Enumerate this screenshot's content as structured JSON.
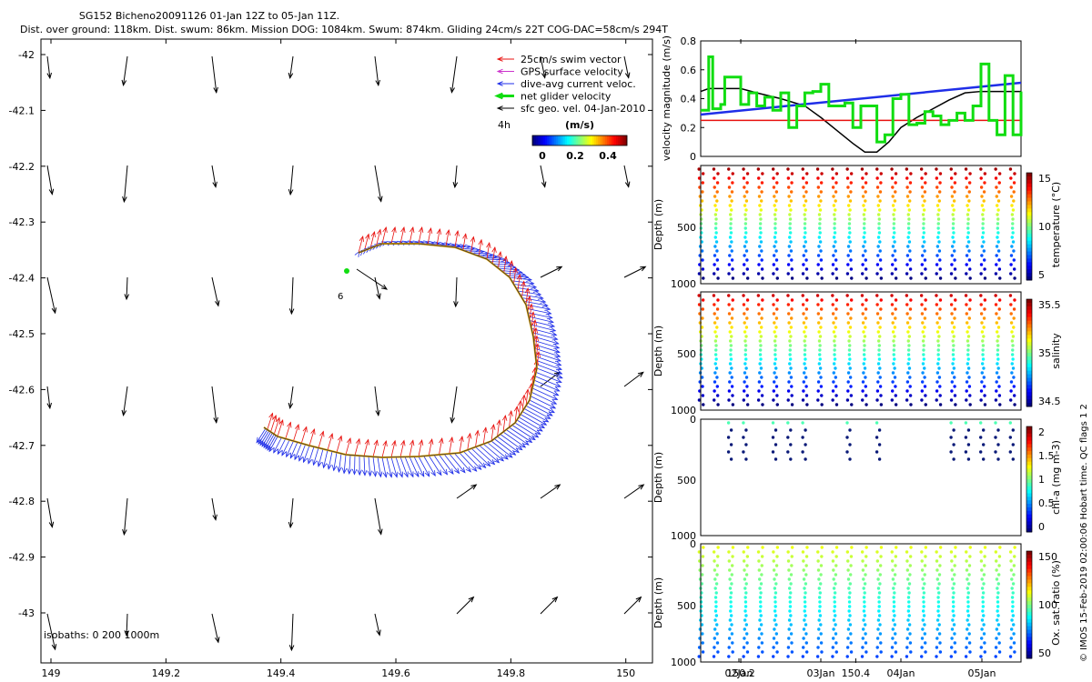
{
  "figure": {
    "title_line1": "SG152 Bicheno20091126 01-Jan 12Z to 05-Jan 11Z.",
    "title_line2": "Dist. over ground: 118km. Dist. swum: 86km. Mission DOG: 1084km. Swum: 874km. Gliding 24cm/s 22T COG-DAC=58cm/s 294T",
    "side_note": "© IMOS 15-Feb-2019 02:00:06 Hobart time. QC flags 1  2"
  },
  "map": {
    "xticks": [
      "149",
      "149.2",
      "149.4",
      "149.6",
      "149.8",
      "150",
      "150.2",
      "150.4"
    ],
    "yticks": [
      "-42",
      "-42.1",
      "-42.2",
      "-42.3",
      "-42.4",
      "-42.5",
      "-42.6",
      "-42.7",
      "-42.8",
      "-42.9",
      "-43"
    ],
    "legend": [
      {
        "label": "25cm/s swim vector",
        "color": "#e8120f"
      },
      {
        "label": "GPS surface velocity",
        "color": "#cc33cc"
      },
      {
        "label": "dive-avg current veloc.",
        "color": "#1f2ee8"
      },
      {
        "label": "net glider velocity",
        "color": "#11dd11"
      },
      {
        "label": "sfc geo. vel. 04-Jan-2010",
        "color": "#000000"
      }
    ],
    "colorbar_title": "(m/s)",
    "colorbar_ticks": [
      "0",
      "0.2",
      "0.4"
    ],
    "age_label": "4h",
    "point_label": "6",
    "isobaths_label": "isobaths: 0   200  1000m"
  },
  "speed_panel": {
    "ylabel": "velocity magnitude (m/s)",
    "yticks": [
      "0",
      "0.2",
      "0.4",
      "0.6",
      "0.8"
    ],
    "colors": {
      "green": "#11dd11",
      "blue": "#1f2ee8",
      "red": "#e8120f",
      "black": "#000000"
    }
  },
  "section_panels": [
    {
      "ylabel": "Depth (m)",
      "cblabel": "temperature (°C)",
      "cbticks": [
        "5",
        "10",
        "15"
      ],
      "ytick_top": "",
      "yticks": [
        "500",
        "1000"
      ]
    },
    {
      "ylabel": "Depth (m)",
      "cblabel": "salinity",
      "cbticks": [
        "34.5",
        "35",
        "35.5"
      ],
      "ytick_top": "",
      "yticks": [
        "500",
        "1000"
      ]
    },
    {
      "ylabel": "Depth (m)",
      "cblabel": "chl-a (mg m-3)",
      "cbticks": [
        "0",
        "0.5",
        "1",
        "1.5",
        "2"
      ],
      "ytick_top": "0",
      "yticks": [
        "500",
        "1000"
      ]
    },
    {
      "ylabel": "Depth (m)",
      "cblabel": "Ox. sat. ratio (%)",
      "cbticks": [
        "50",
        "100",
        "150"
      ],
      "ytick_top": "0",
      "yticks": [
        "500",
        "1000"
      ]
    }
  ],
  "time_axis": {
    "labels": [
      "02Jan",
      "03Jan",
      "04Jan",
      "05Jan"
    ]
  },
  "chart_data": [
    {
      "type": "line",
      "panel": "velocity magnitude",
      "ylabel": "velocity magnitude (m/s)",
      "ylim": [
        0,
        0.8
      ],
      "x_days": [
        1.5,
        5.5
      ],
      "series": [
        {
          "color": "black",
          "x": [
            1.5,
            1.6,
            1.8,
            2.0,
            2.2,
            2.5,
            2.8,
            3.0,
            3.2,
            3.4,
            3.55,
            3.7,
            3.85,
            4.0,
            4.2,
            4.4,
            4.6,
            4.8,
            5.0,
            5.2,
            5.5
          ],
          "y": [
            0.45,
            0.47,
            0.47,
            0.47,
            0.44,
            0.4,
            0.35,
            0.27,
            0.18,
            0.09,
            0.03,
            0.03,
            0.1,
            0.2,
            0.27,
            0.33,
            0.39,
            0.44,
            0.45,
            0.45,
            0.45
          ]
        },
        {
          "color": "blue",
          "x": [
            1.5,
            5.5
          ],
          "y": [
            0.29,
            0.51
          ]
        },
        {
          "color": "red",
          "x": [
            1.5,
            5.5
          ],
          "y": [
            0.25,
            0.25
          ]
        },
        {
          "color": "green",
          "x": [
            1.5,
            1.6,
            1.65,
            1.75,
            1.8,
            2.0,
            2.1,
            2.2,
            2.3,
            2.4,
            2.5,
            2.6,
            2.7,
            2.8,
            2.9,
            3.0,
            3.1,
            3.2,
            3.3,
            3.4,
            3.5,
            3.6,
            3.7,
            3.8,
            3.9,
            4.0,
            4.1,
            4.2,
            4.3,
            4.4,
            4.5,
            4.6,
            4.7,
            4.8,
            4.9,
            5.0,
            5.1,
            5.2,
            5.3,
            5.4,
            5.5
          ],
          "y": [
            0.32,
            0.69,
            0.33,
            0.36,
            0.55,
            0.36,
            0.44,
            0.35,
            0.41,
            0.32,
            0.44,
            0.2,
            0.35,
            0.44,
            0.45,
            0.5,
            0.35,
            0.35,
            0.37,
            0.2,
            0.35,
            0.35,
            0.1,
            0.15,
            0.4,
            0.43,
            0.22,
            0.23,
            0.31,
            0.28,
            0.22,
            0.25,
            0.3,
            0.25,
            0.35,
            0.64,
            0.25,
            0.15,
            0.56,
            0.15,
            0.45
          ]
        }
      ]
    }
  ]
}
